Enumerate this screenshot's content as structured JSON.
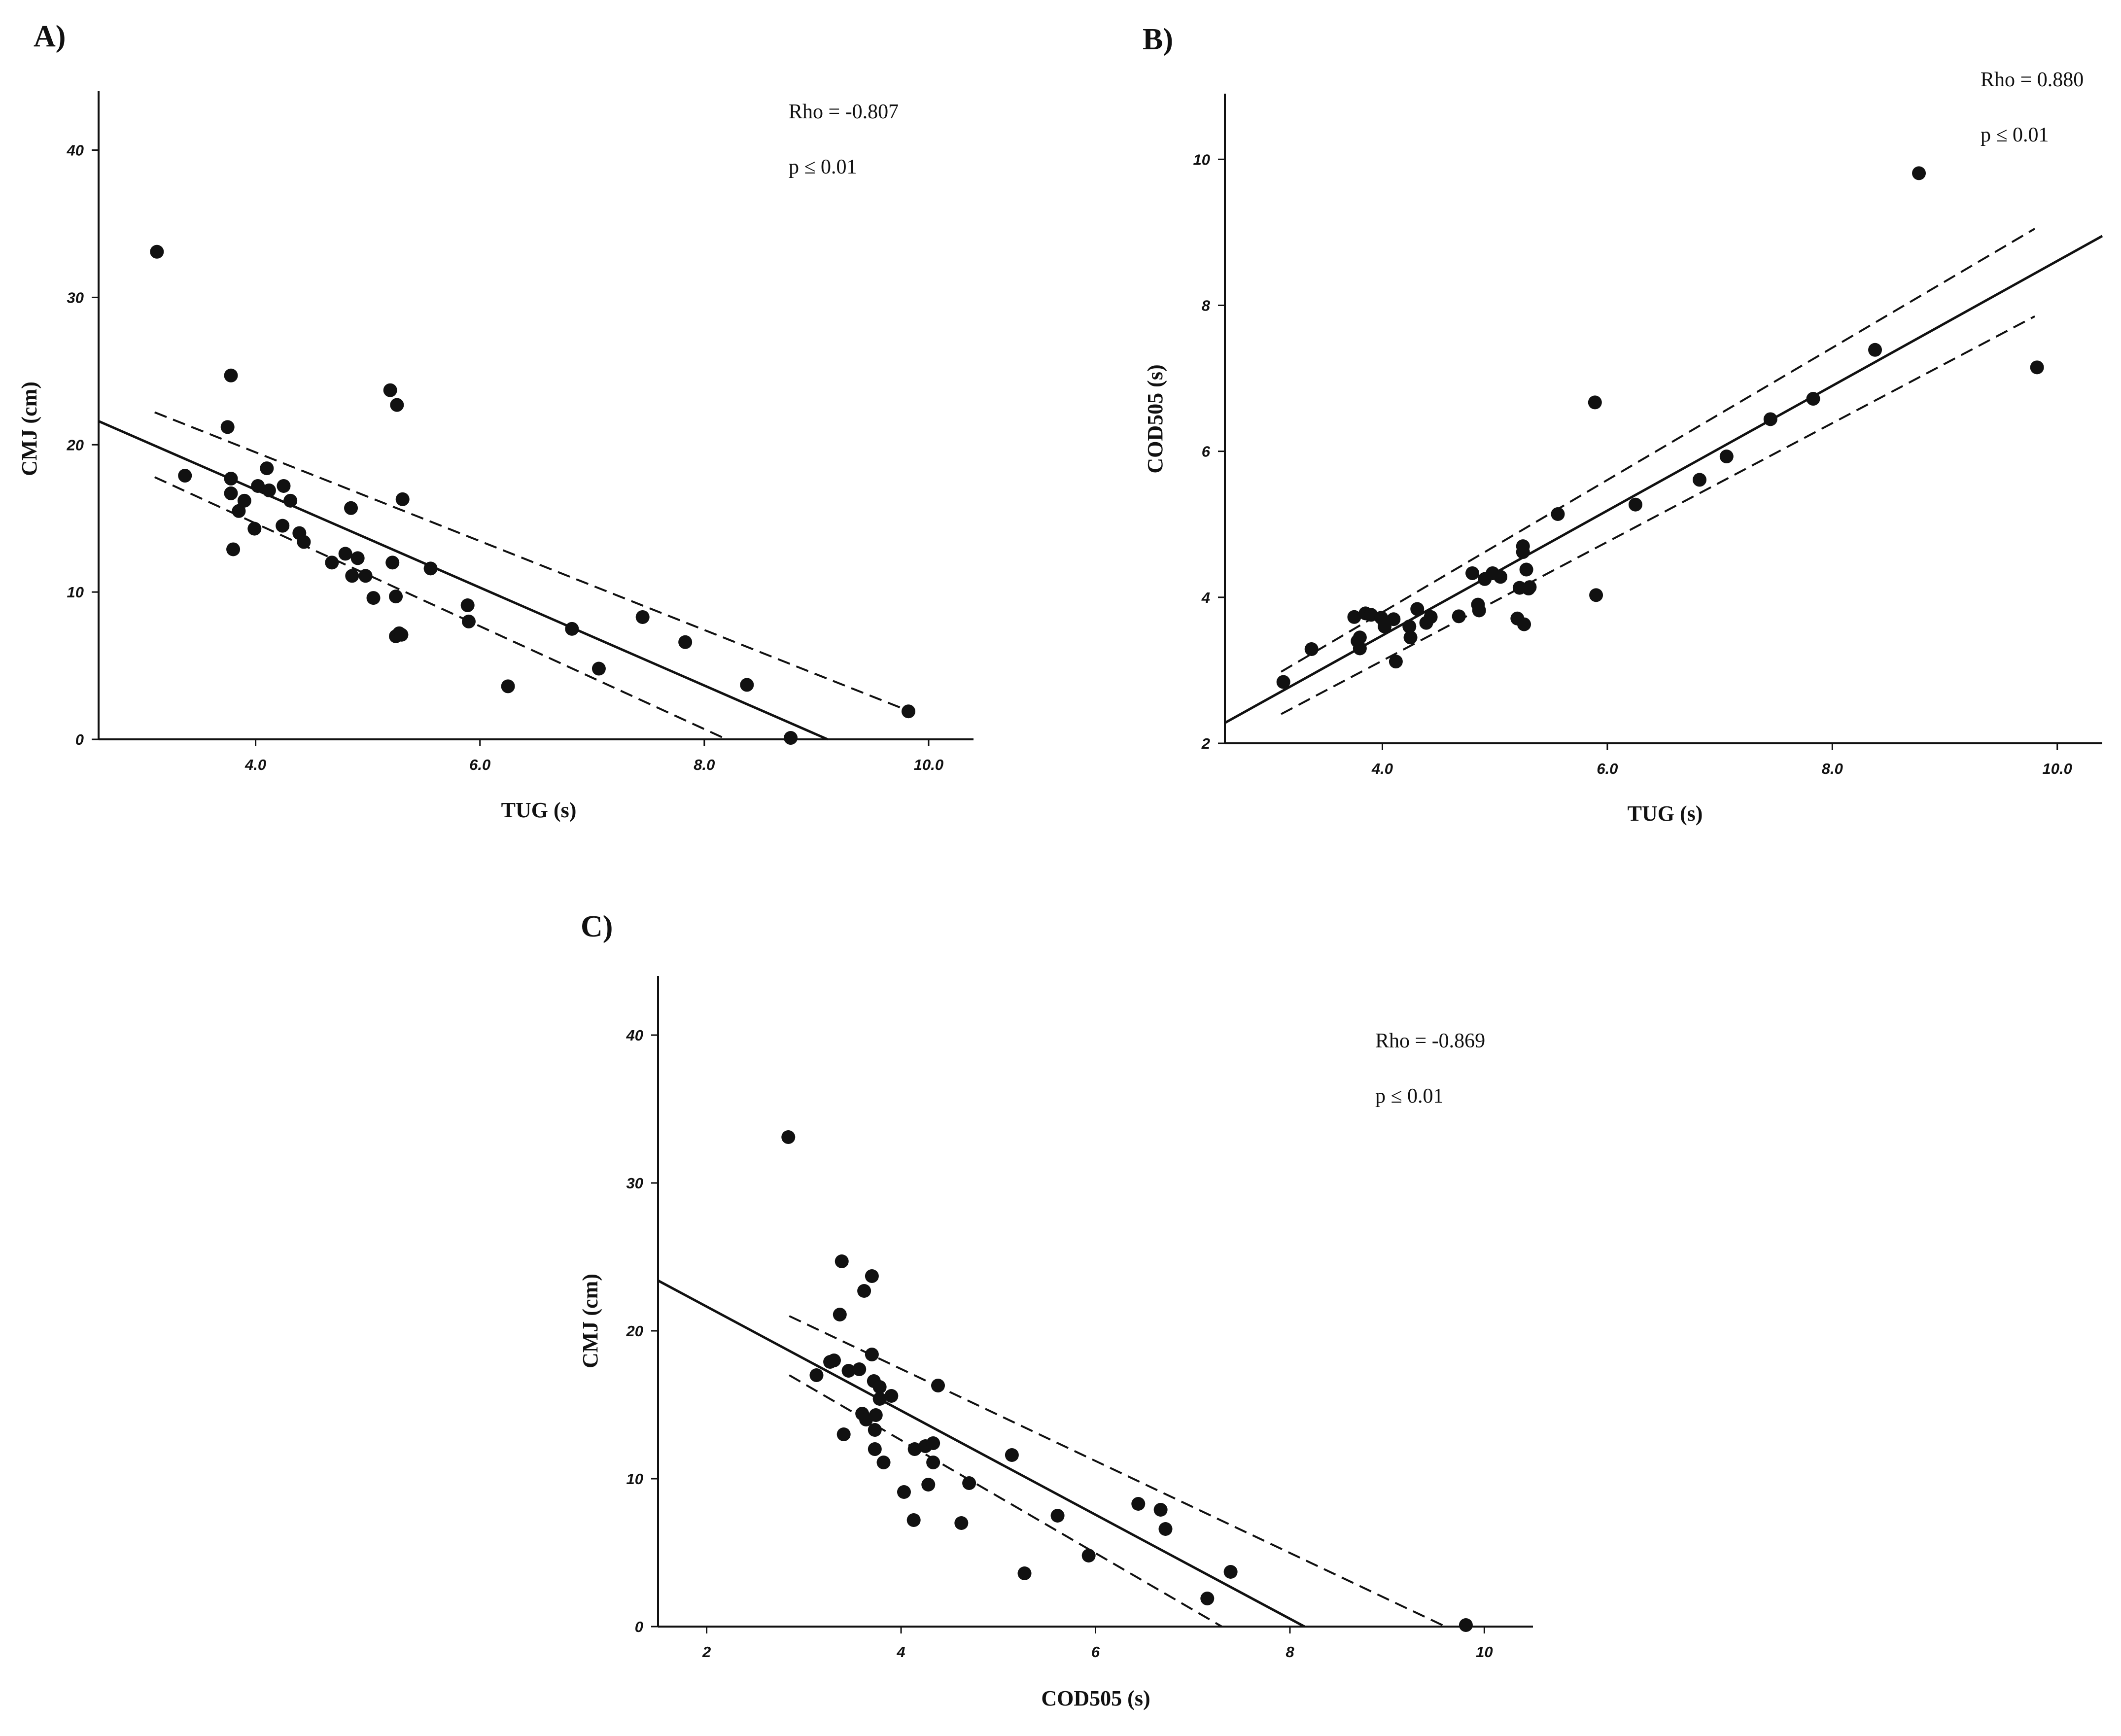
{
  "chart_data": [
    {
      "type": "scatter",
      "panel_label": "A)",
      "xlabel": "TUG (s)",
      "ylabel": "CMJ (cm)",
      "xlim": [
        2.6,
        10.4
      ],
      "ylim": [
        0,
        44
      ],
      "xticks": [
        4.0,
        6.0,
        8.0,
        10.0
      ],
      "xtick_labels": [
        "4.0",
        "6.0",
        "8.0",
        "10.0"
      ],
      "yticks": [
        0,
        10,
        20,
        30,
        40
      ],
      "ytick_labels": [
        "0",
        "10",
        "20",
        "30",
        "40"
      ],
      "annotations": [
        "Rho = -0.807",
        "p ≤ 0.01"
      ],
      "fit_line": {
        "x": [
          2.6,
          9.1
        ],
        "y": [
          21.6,
          0
        ]
      },
      "ci_upper": {
        "x": [
          3.1,
          9.8
        ],
        "y": [
          22.2,
          2.0
        ]
      },
      "ci_lower": {
        "x": [
          3.1,
          8.2
        ],
        "y": [
          17.8,
          0
        ]
      },
      "points": {
        "x": [
          3.12,
          3.37,
          3.75,
          3.78,
          3.78,
          3.78,
          3.8,
          3.85,
          3.9,
          3.99,
          4.02,
          4.1,
          4.12,
          4.24,
          4.25,
          4.31,
          4.39,
          4.43,
          4.68,
          4.8,
          4.85,
          4.86,
          4.91,
          4.98,
          5.05,
          5.2,
          5.22,
          5.25,
          5.25,
          5.26,
          5.28,
          5.3,
          5.31,
          5.56,
          5.89,
          5.9,
          6.25,
          6.82,
          7.06,
          7.45,
          7.83,
          8.38,
          8.77,
          9.82
        ],
        "y": [
          33.1,
          17.9,
          21.2,
          24.7,
          17.7,
          16.7,
          12.9,
          15.5,
          16.2,
          14.3,
          17.2,
          18.4,
          16.9,
          14.5,
          17.2,
          16.2,
          14.0,
          13.4,
          12.0,
          12.6,
          15.7,
          11.1,
          12.3,
          11.1,
          9.6,
          23.7,
          12.0,
          7.0,
          9.7,
          22.7,
          7.2,
          7.1,
          16.3,
          11.6,
          9.1,
          8.0,
          3.6,
          7.5,
          4.8,
          8.3,
          6.6,
          3.7,
          0.1,
          1.9
        ]
      }
    },
    {
      "type": "scatter",
      "panel_label": "B)",
      "xlabel": "TUG (s)",
      "ylabel": "COD505 (s)",
      "xlim": [
        2.6,
        10.4
      ],
      "ylim": [
        2,
        10.9
      ],
      "xticks": [
        4.0,
        6.0,
        8.0,
        10.0
      ],
      "xtick_labels": [
        "4.0",
        "6.0",
        "8.0",
        "10.0"
      ],
      "yticks": [
        2,
        4,
        6,
        8,
        10
      ],
      "ytick_labels": [
        "2",
        "4",
        "6",
        "8",
        "10"
      ],
      "annotations": [
        "Rho = 0.880",
        "p ≤ 0.01"
      ],
      "fit_line": {
        "x": [
          2.6,
          10.4
        ],
        "y": [
          2.28,
          8.95
        ]
      },
      "ci_upper": {
        "x": [
          3.1,
          9.8
        ],
        "y": [
          2.98,
          9.05
        ]
      },
      "ci_lower": {
        "x": [
          3.1,
          9.8
        ],
        "y": [
          2.4,
          7.85
        ]
      },
      "points": {
        "x": [
          3.12,
          3.37,
          3.75,
          3.78,
          3.8,
          3.8,
          3.85,
          3.9,
          3.99,
          4.02,
          4.1,
          4.12,
          4.24,
          4.25,
          4.31,
          4.39,
          4.43,
          4.68,
          4.8,
          4.85,
          4.86,
          4.91,
          4.98,
          5.05,
          5.2,
          5.22,
          5.25,
          5.25,
          5.26,
          5.28,
          5.3,
          5.31,
          5.56,
          5.89,
          5.9,
          6.25,
          6.82,
          7.06,
          7.45,
          7.83,
          8.38,
          8.77,
          9.82
        ],
        "y": [
          2.84,
          3.29,
          3.73,
          3.4,
          3.3,
          3.45,
          3.78,
          3.76,
          3.72,
          3.6,
          3.7,
          3.12,
          3.6,
          3.45,
          3.84,
          3.65,
          3.73,
          3.74,
          4.33,
          3.9,
          3.82,
          4.25,
          4.33,
          4.28,
          3.71,
          4.13,
          4.62,
          4.7,
          3.63,
          4.38,
          4.12,
          4.14,
          5.14,
          6.67,
          4.03,
          5.27,
          5.61,
          5.93,
          6.44,
          6.72,
          7.39,
          9.81,
          7.15
        ]
      }
    },
    {
      "type": "scatter",
      "panel_label": "C)",
      "xlabel": "COD505 (s)",
      "ylabel": "CMJ (cm)",
      "xlim": [
        1.5,
        10.5
      ],
      "ylim": [
        0,
        44
      ],
      "xticks": [
        2,
        4,
        6,
        8,
        10
      ],
      "xtick_labels": [
        "2",
        "4",
        "6",
        "8",
        "10"
      ],
      "yticks": [
        0,
        10,
        20,
        30,
        40
      ],
      "ytick_labels": [
        "0",
        "10",
        "20",
        "30",
        "40"
      ],
      "annotations": [
        "Rho = -0.869",
        "p ≤ 0.01"
      ],
      "fit_line": {
        "x": [
          1.5,
          8.15
        ],
        "y": [
          23.4,
          0
        ]
      },
      "ci_upper": {
        "x": [
          2.85,
          9.6
        ],
        "y": [
          21.0,
          0
        ]
      },
      "ci_lower": {
        "x": [
          2.85,
          7.3
        ],
        "y": [
          17.0,
          0
        ]
      },
      "points": {
        "x": [
          2.84,
          3.13,
          3.27,
          3.31,
          3.37,
          3.39,
          3.41,
          3.46,
          3.57,
          3.6,
          3.62,
          3.64,
          3.7,
          3.7,
          3.72,
          3.73,
          3.73,
          3.74,
          3.78,
          3.78,
          3.82,
          3.9,
          4.03,
          4.13,
          4.14,
          4.25,
          4.28,
          4.33,
          4.33,
          4.38,
          4.62,
          4.7,
          5.14,
          5.27,
          5.61,
          5.93,
          6.44,
          6.67,
          6.72,
          7.15,
          7.39,
          9.81
        ],
        "y": [
          33.1,
          17.0,
          17.9,
          18.0,
          21.1,
          24.7,
          13.0,
          17.3,
          17.4,
          14.4,
          22.7,
          14.0,
          23.7,
          18.4,
          16.6,
          13.3,
          12.0,
          14.3,
          16.2,
          15.4,
          11.1,
          15.6,
          9.1,
          7.2,
          12.0,
          12.2,
          9.6,
          11.1,
          12.4,
          16.3,
          7.0,
          9.7,
          11.6,
          3.6,
          7.5,
          4.8,
          8.3,
          7.9,
          6.6,
          1.9,
          3.7,
          0.1
        ]
      }
    }
  ]
}
